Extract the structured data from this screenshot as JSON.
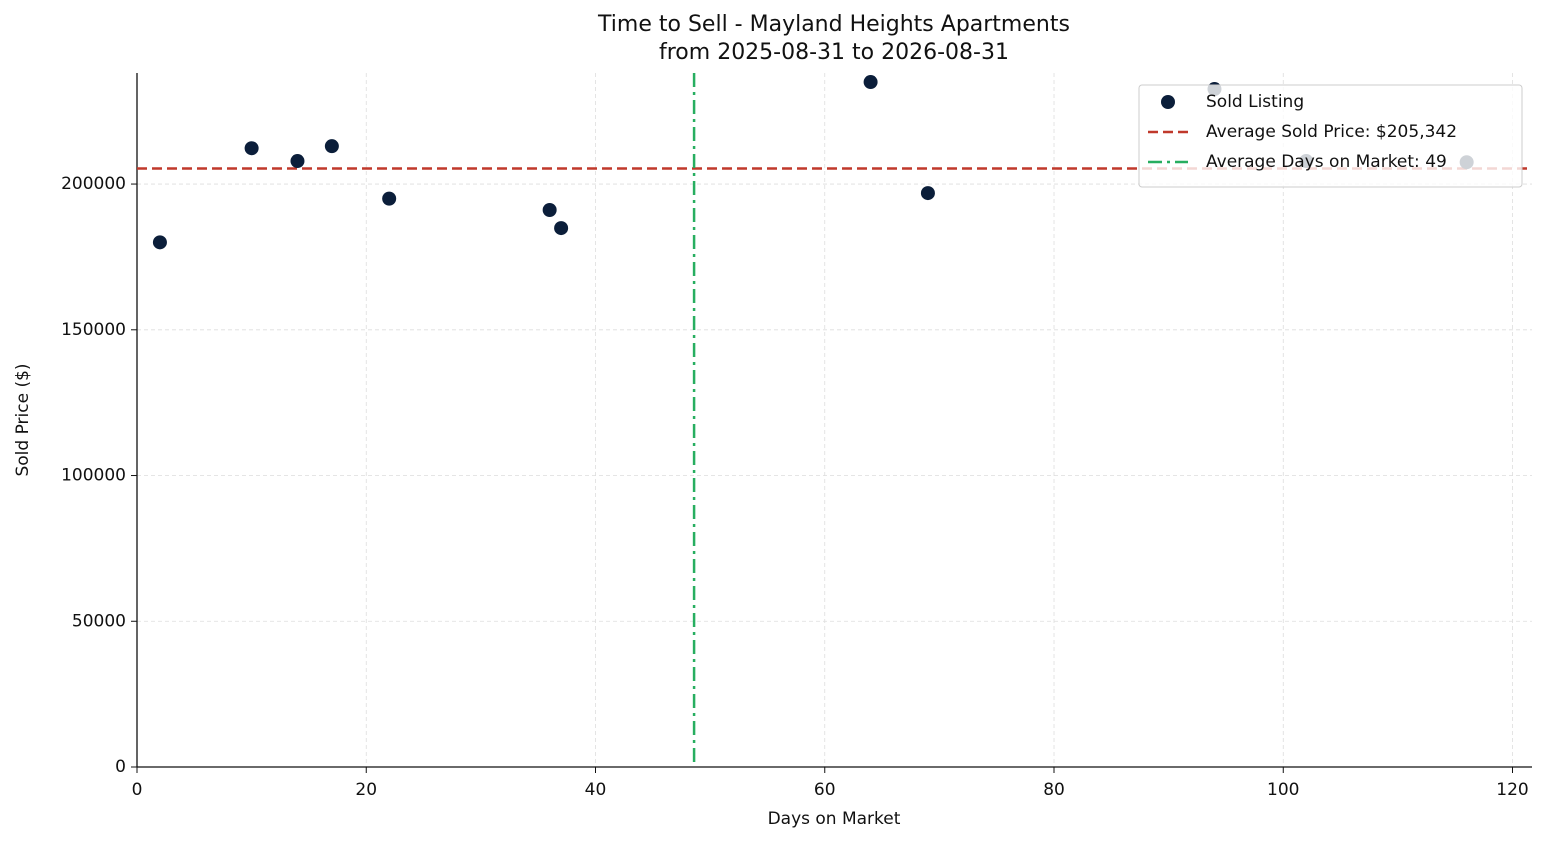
{
  "chart_data": {
    "type": "scatter",
    "title": "Time to Sell - Mayland Heights Apartments",
    "subtitle": "from 2025-08-31 to 2026-08-31",
    "x_label": "Days on Market",
    "y_label": "Sold Price ($)",
    "series": [
      {
        "name": "Sold Listing",
        "color": "#0b1e3a",
        "x": [
          2,
          10,
          14,
          17,
          22,
          36,
          37,
          64,
          69,
          94,
          102,
          116
        ],
        "values": [
          180000,
          212300,
          207900,
          213000,
          195000,
          191100,
          184900,
          235000,
          196900,
          232600,
          207900,
          207500
        ]
      }
    ],
    "reference_lines": [
      {
        "name": "Average Sold Price: $205,342",
        "axis": "y",
        "value": 205342,
        "color": "#c0392b",
        "style": "dashed"
      },
      {
        "name": "Average Days on Market: 49",
        "axis": "x",
        "value": 48.6,
        "color": "#27ae60",
        "style": "dashdot"
      }
    ],
    "xlim": [
      0,
      121.7
    ],
    "ylim": [
      0,
      238100
    ],
    "xticks": [
      0,
      20,
      40,
      60,
      80,
      100,
      120
    ],
    "yticks": [
      0,
      50000,
      100000,
      150000,
      200000
    ],
    "grid": true,
    "legend": "upper right"
  }
}
